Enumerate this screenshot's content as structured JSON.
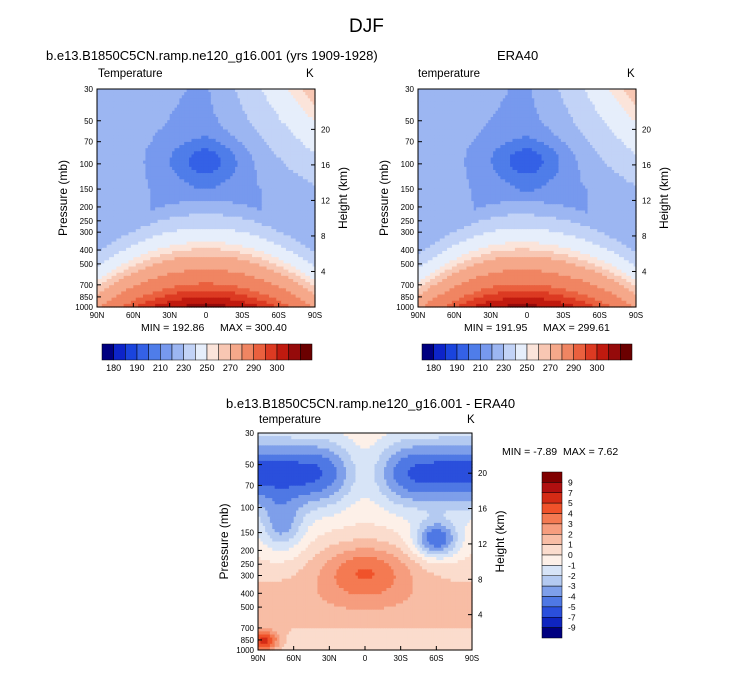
{
  "figure": {
    "title": "DJF"
  },
  "chart_data": [
    {
      "type": "heatmap",
      "name": "model",
      "title": "b.e13.B1850C5CN.ramp.ne120_g16.001 (yrs 1909-1928)",
      "left_label": "Temperature",
      "unit": "K",
      "ylabel": "Pressure (mb)",
      "ylabel_right": "Height (km)",
      "x_ticks": [
        "90N",
        "60N",
        "30N",
        "0",
        "30S",
        "60S",
        "90S"
      ],
      "y_ticks": [
        "30",
        "50",
        "70",
        "100",
        "150",
        "200",
        "250",
        "300",
        "400",
        "500",
        "700",
        "850",
        "1000"
      ],
      "y_ticks_right": [
        "20",
        "16",
        "12",
        "8",
        "4"
      ],
      "min_label": "MIN = 192.86",
      "max_label": "MAX = 300.40",
      "min": 192.86,
      "max": 300.4,
      "field": "ZM_MODEL"
    },
    {
      "type": "heatmap",
      "name": "obs",
      "title": "ERA40",
      "left_label": "temperature",
      "unit": "K",
      "ylabel": "Pressure (mb)",
      "ylabel_right": "Height (km)",
      "x_ticks": [
        "90N",
        "60N",
        "30N",
        "0",
        "30S",
        "60S",
        "90S"
      ],
      "y_ticks": [
        "30",
        "50",
        "70",
        "100",
        "150",
        "200",
        "250",
        "300",
        "400",
        "500",
        "700",
        "850",
        "1000"
      ],
      "y_ticks_right": [
        "20",
        "16",
        "12",
        "8",
        "4"
      ],
      "min_label": "MIN = 191.95",
      "max_label": "MAX = 299.61",
      "min": 191.95,
      "max": 299.61,
      "field": "ZM_OBS"
    },
    {
      "type": "heatmap",
      "name": "diff",
      "title": "b.e13.B1850C5CN.ramp.ne120_g16.001 - ERA40",
      "left_label": "temperature",
      "unit": "K",
      "ylabel": "Pressure (mb)",
      "ylabel_right": "Height (km)",
      "x_ticks": [
        "90N",
        "60N",
        "30N",
        "0",
        "30S",
        "60S",
        "90S"
      ],
      "y_ticks": [
        "30",
        "50",
        "70",
        "100",
        "150",
        "200",
        "250",
        "300",
        "400",
        "500",
        "700",
        "850",
        "1000"
      ],
      "y_ticks_right": [
        "20",
        "16",
        "12",
        "8",
        "4"
      ],
      "min_label": "MIN = -7.89",
      "max_label": "MAX =  7.62",
      "min": -7.89,
      "max": 7.62,
      "field": "DIFF"
    }
  ],
  "colorbar_main": {
    "labels": [
      "180",
      "190",
      "210",
      "230",
      "250",
      "270",
      "290",
      "300"
    ],
    "colors": [
      "#000080",
      "#0d24c9",
      "#1a44dd",
      "#3461e6",
      "#4f7de9",
      "#7799ee",
      "#9cb6f2",
      "#c2d3f7",
      "#e6eefb",
      "#fbe4da",
      "#f8c7b3",
      "#f5a88a",
      "#f08562",
      "#ea603e",
      "#dc3a22",
      "#c01a0f",
      "#950a0a",
      "#6b0000"
    ]
  },
  "colorbar_diff": {
    "labels": [
      "9",
      "7",
      "5",
      "4",
      "3",
      "2",
      "1",
      "0",
      "-1",
      "-2",
      "-3",
      "-4",
      "-5",
      "-7",
      "-9"
    ],
    "colors": [
      "#800000",
      "#b01010",
      "#d42b15",
      "#f0522a",
      "#f47a52",
      "#f69d7e",
      "#f8bda5",
      "#fbdccd",
      "#fdf0e8",
      "#d7e4f7",
      "#b4caf1",
      "#7e9fea",
      "#4f78e4",
      "#2a4fdc",
      "#0f25c0",
      "#000080"
    ]
  }
}
